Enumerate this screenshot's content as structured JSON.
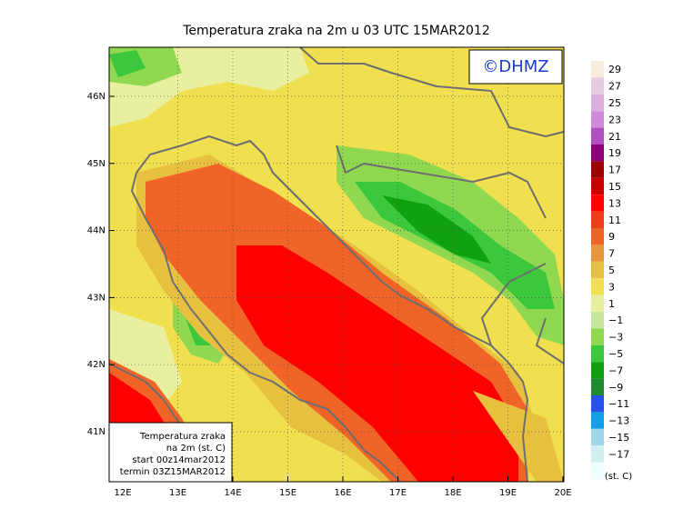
{
  "title": "Temperatura zraka na 2m u 03 UTC 15MAR2012",
  "logo": "©DHMZ",
  "lon_ticks": [
    "12E",
    "13E",
    "14E",
    "15E",
    "16E",
    "17E",
    "18E",
    "19E",
    "20E"
  ],
  "lat_ticks": [
    "46N",
    "45N",
    "44N",
    "43N",
    "42N",
    "41N"
  ],
  "info_box": [
    "Temperatura zraka",
    "na 2m (st. C)",
    "start 00z14mar2012",
    "termin 03Z15MAR2012"
  ],
  "colorbar": {
    "unit": "(st. C)",
    "levels": [
      "29",
      "27",
      "25",
      "23",
      "21",
      "19",
      "17",
      "15",
      "13",
      "11",
      "9",
      "7",
      "5",
      "3",
      "1",
      "−1",
      "−3",
      "−5",
      "−7",
      "−9",
      "−11",
      "−13",
      "−15",
      "−17"
    ],
    "colors": [
      "#f8ecdc",
      "#e6cce0",
      "#dcb0dc",
      "#d08cd8",
      "#b050c0",
      "#8c0078",
      "#a00000",
      "#c80000",
      "#ff0000",
      "#f03c18",
      "#f06428",
      "#e8963c",
      "#e8c040",
      "#f0e050",
      "#e8f0a0",
      "#c8e8a0",
      "#90d850",
      "#3cc83c",
      "#10a010",
      "#208a30",
      "#2850f0",
      "#10a0e8",
      "#a0d8e8",
      "#d0f0f0",
      "#f0ffff"
    ]
  }
}
